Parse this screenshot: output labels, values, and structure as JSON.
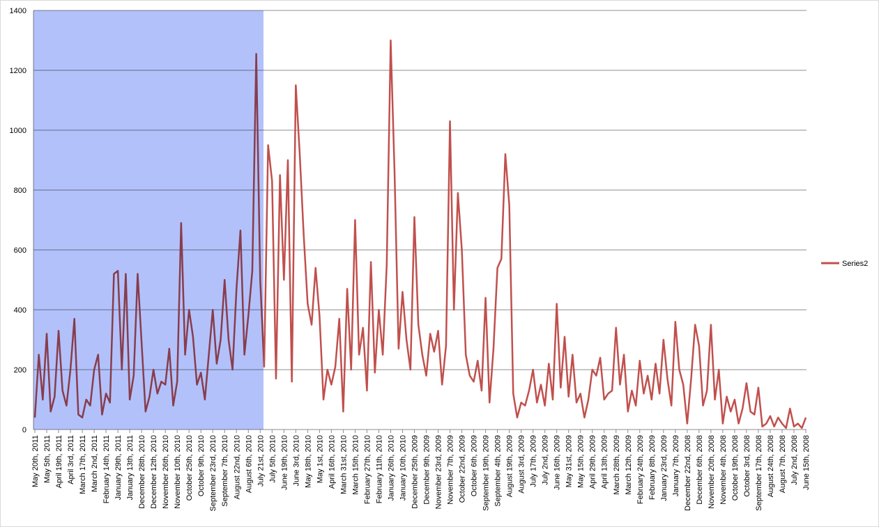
{
  "chart_data": {
    "type": "line",
    "categories": [
      "May 20th, 2011",
      null,
      null,
      "May 5th, 2011",
      null,
      null,
      "April 19th, 2011",
      null,
      null,
      "April 3rd, 2011",
      null,
      null,
      "March 17th, 2011",
      null,
      null,
      "March 2nd, 2011",
      null,
      null,
      "February 14th, 2011",
      null,
      null,
      "January 29th, 2011",
      null,
      null,
      "January 13th, 2011",
      null,
      null,
      "December 28th, 2010",
      null,
      null,
      "December 12th, 2010",
      null,
      null,
      "November 26th, 2010",
      null,
      null,
      "November 10th, 2010",
      null,
      null,
      "October 25th, 2010",
      null,
      null,
      "October 9th, 2010",
      null,
      null,
      "September 23rd, 2010",
      null,
      null,
      "September 7th, 2010",
      null,
      null,
      "August 22nd, 2010",
      null,
      null,
      "August 6th, 2010",
      null,
      null,
      "July 21st, 2010",
      null,
      null,
      "July 5th, 2010",
      null,
      null,
      "June 19th, 2010",
      null,
      null,
      "June 3rd, 2010",
      null,
      null,
      "May 18th, 2010",
      null,
      null,
      "May 1st, 2010",
      null,
      null,
      "April 16th, 2010",
      null,
      null,
      "March 31st, 2010",
      null,
      null,
      "March 15th, 2010",
      null,
      null,
      "February 27th, 2010",
      null,
      null,
      "February 11th, 2010",
      null,
      null,
      "January 26th, 2010",
      null,
      null,
      "January 10th, 2010",
      null,
      null,
      "December 25th, 2009",
      null,
      null,
      "December 9th, 2009",
      null,
      null,
      "November 23rd, 2009",
      null,
      null,
      "November 7th, 2009",
      null,
      null,
      "October 22nd, 2009",
      null,
      null,
      "October 6th, 2009",
      null,
      null,
      "September 19th, 2009",
      null,
      null,
      "September 4th, 2009",
      null,
      null,
      "August 19th, 2009",
      null,
      null,
      "August 3rd, 2009",
      null,
      null,
      "July 17th, 2009",
      null,
      null,
      "July 2nd, 2009",
      null,
      null,
      "June 16th, 2009",
      null,
      null,
      "May 31st, 2009",
      null,
      null,
      "May 15th, 2009",
      null,
      null,
      "April 29th, 2009",
      null,
      null,
      "April 13th, 2009",
      null,
      null,
      "March 28th, 2009",
      null,
      null,
      "March 12th, 2009",
      null,
      null,
      "February 24th, 2009",
      null,
      null,
      "February 8th, 2009",
      null,
      null,
      "January 23rd, 2009",
      null,
      null,
      "January 7th, 2009",
      null,
      null,
      "December 22nd, 2008",
      null,
      null,
      "December 6th, 2008",
      null,
      null,
      "November 20th, 2008",
      null,
      null,
      "November 4th, 2008",
      null,
      null,
      "October 19th, 2008",
      null,
      null,
      "October 3rd, 2008",
      null,
      null,
      "September 17th, 2008",
      null,
      null,
      "August 24th, 2008",
      null,
      null,
      "August 7th, 2008",
      null,
      null,
      "July 2nd, 2008",
      null,
      null,
      "June 15th, 2008"
    ],
    "series": [
      {
        "name": "Series2",
        "color": "#c0504d",
        "values": [
          40,
          250,
          100,
          320,
          60,
          110,
          330,
          130,
          80,
          200,
          370,
          50,
          40,
          100,
          80,
          200,
          250,
          50,
          120,
          90,
          520,
          530,
          200,
          520,
          100,
          180,
          520,
          290,
          60,
          110,
          200,
          120,
          160,
          150,
          270,
          80,
          160,
          690,
          250,
          400,
          310,
          150,
          190,
          100,
          250,
          400,
          220,
          300,
          500,
          300,
          200,
          470,
          665,
          250,
          380,
          530,
          1255,
          500,
          210,
          950,
          830,
          170,
          850,
          500,
          900,
          160,
          1150,
          920,
          650,
          420,
          350,
          540,
          380,
          100,
          200,
          150,
          210,
          370,
          60,
          470,
          200,
          700,
          250,
          340,
          130,
          560,
          190,
          400,
          250,
          550,
          1300,
          850,
          270,
          460,
          300,
          200,
          710,
          350,
          250,
          180,
          320,
          260,
          330,
          150,
          280,
          1030,
          400,
          790,
          600,
          250,
          180,
          160,
          230,
          130,
          440,
          90,
          270,
          540,
          570,
          920,
          750,
          120,
          40,
          90,
          80,
          130,
          200,
          90,
          150,
          80,
          220,
          100,
          420,
          140,
          310,
          110,
          250,
          90,
          120,
          40,
          100,
          200,
          180,
          240,
          100,
          120,
          130,
          340,
          150,
          250,
          60,
          130,
          80,
          230,
          120,
          180,
          100,
          220,
          120,
          300,
          170,
          80,
          360,
          200,
          150,
          20,
          170,
          350,
          280,
          80,
          130,
          350,
          100,
          200,
          20,
          110,
          60,
          100,
          20,
          70,
          155,
          60,
          50,
          140,
          10,
          20,
          45,
          10,
          40,
          20,
          5,
          70,
          10,
          20,
          5,
          40
        ]
      }
    ],
    "ylim": [
      0,
      1400
    ],
    "yticks": [
      0,
      200,
      400,
      600,
      800,
      1000,
      1200,
      1400
    ],
    "grid": true,
    "legend": "right"
  }
}
